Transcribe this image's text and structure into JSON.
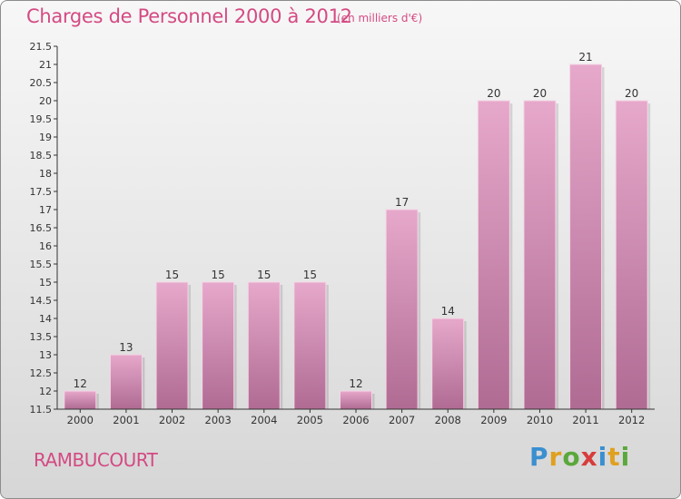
{
  "header": {
    "title": "Charges de Personnel 2000 à 2012",
    "unit": "(en milliers d'€)"
  },
  "footer": {
    "city": "RAMBUCOURT",
    "logo_letters": [
      "P",
      "r",
      "o",
      "x",
      "i",
      "t",
      "i"
    ]
  },
  "colors": {
    "accent": "#d44a83",
    "bar_top": "#e6a8cb",
    "bar_bottom": "#b06b93",
    "axis": "#333333"
  },
  "chart_data": {
    "type": "bar",
    "categories": [
      "2000",
      "2001",
      "2002",
      "2003",
      "2004",
      "2005",
      "2006",
      "2007",
      "2008",
      "2009",
      "2010",
      "2011",
      "2012"
    ],
    "values": [
      12,
      13,
      15,
      15,
      15,
      15,
      12,
      17,
      14,
      20,
      20,
      21,
      20
    ],
    "value_labels": [
      "12",
      "13",
      "15",
      "15",
      "15",
      "15",
      "12",
      "17",
      "14",
      "20",
      "20",
      "21",
      "20"
    ],
    "title": "Charges de Personnel 2000 à 2012",
    "ylim": [
      11.5,
      21.5
    ],
    "yticks": [
      "11.5",
      "12",
      "12.5",
      "13",
      "13.5",
      "14",
      "14.5",
      "15",
      "15.5",
      "16",
      "16.5",
      "17",
      "17.5",
      "18",
      "18.5",
      "19",
      "19.5",
      "20",
      "20.5",
      "21",
      "21.5"
    ],
    "grid": false,
    "legend": "none"
  }
}
